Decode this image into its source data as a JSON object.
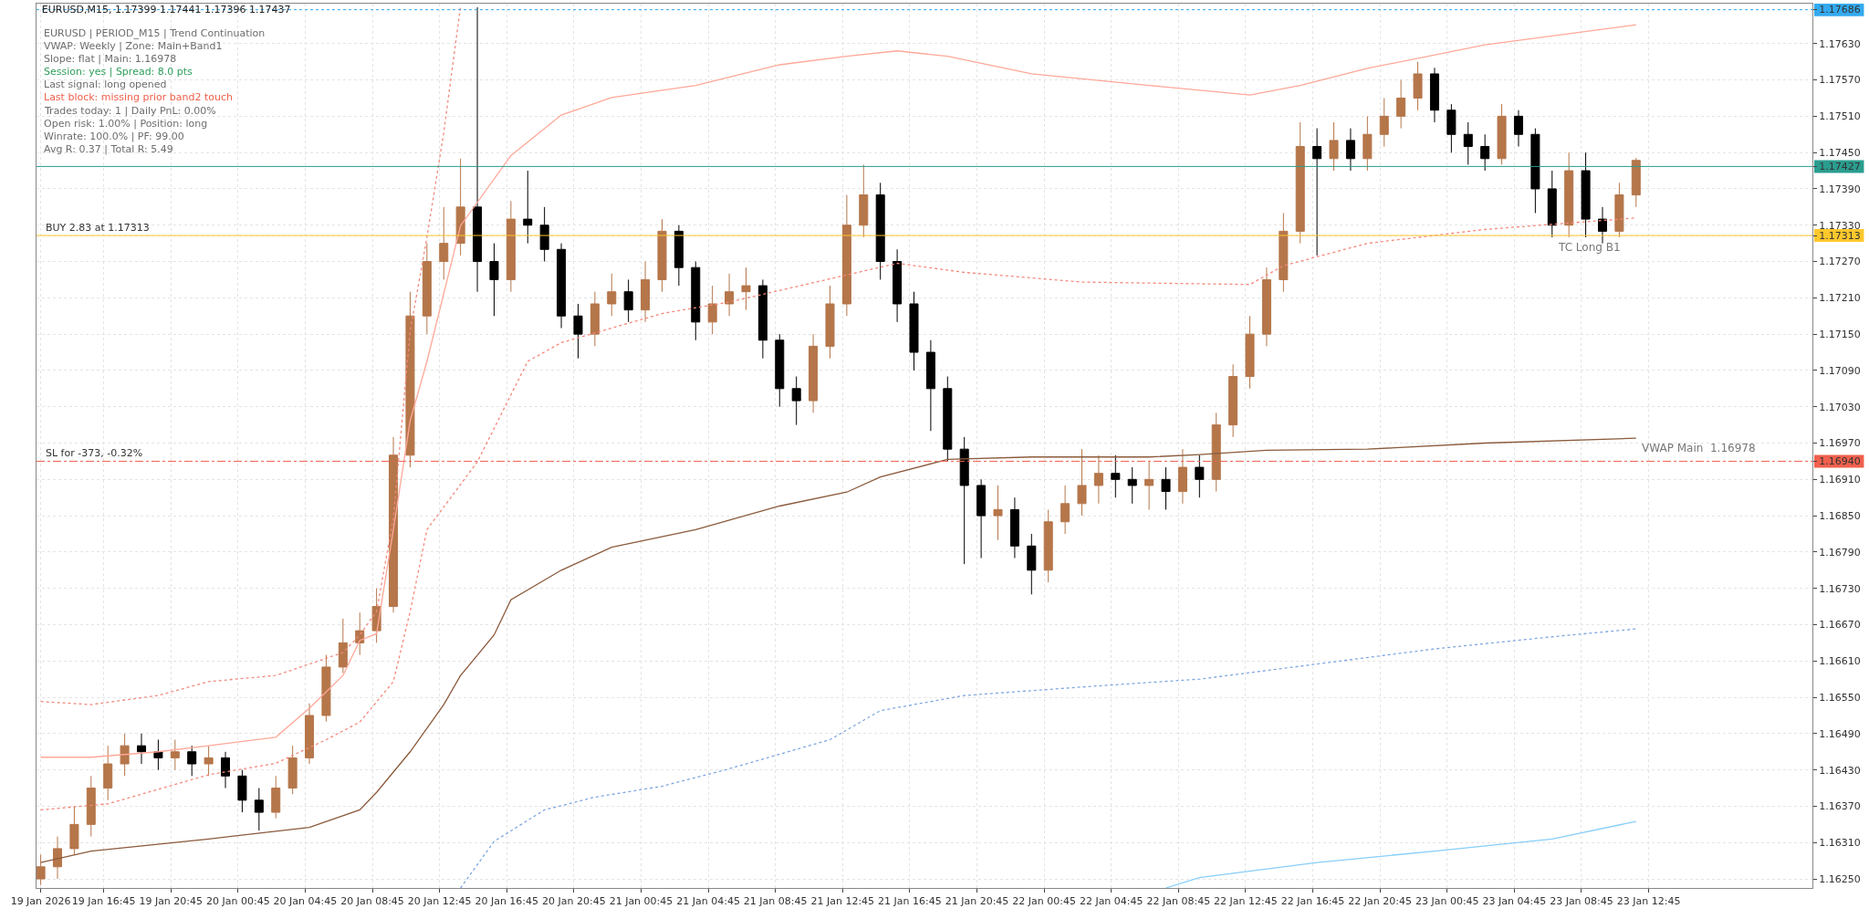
{
  "chart_data": {
    "type": "candlestick",
    "title": "EURUSD,M15, 1.17399 1.17441 1.17396 1.17437",
    "annotations": [
      "EURUSD | PERIOD_M15 | Trend Continuation",
      "VWAP: Weekly | Zone: Main+Band1",
      "Slope: flat | Main: 1.16978",
      "Session: yes | Spread: 8.0 pts",
      "Last signal: long opened",
      "Last block: missing prior band2 touch",
      "Trades today: 1 | Daily PnL: 0.00%",
      "Open risk: 1.00% | Position: long",
      "Winrate: 100.0% | PF: 99.00",
      "Avg R: 0.37 | Total R: 5.49",
      {
        "text": "VWAP Main  1.16978",
        "x": "2026-01-23T12:00",
        "y": 1.16978
      },
      {
        "text": "TC Long B1",
        "x": "2026-01-23T07:00",
        "y": 1.1731
      }
    ],
    "series": [
      {
        "colors": [
          "#b5764a",
          "#b5764a",
          "#b5764a",
          "#b5764a",
          "#b5764a",
          "#b5764a",
          "#000000",
          "#000000",
          "#b5764a",
          "#000000",
          "#b5764a",
          "#000000",
          "#000000",
          "#000000",
          "#b5764a",
          "#b5764a",
          "#b5764a",
          "#b5764a",
          "#b5764a",
          "#b5764a",
          "#b5764a",
          "#b5764a",
          "#b5764a",
          "#b5764a",
          "#b5764a",
          "#b5764a",
          "#000000",
          "#000000",
          "#b5764a",
          "#000000",
          "#000000",
          "#000000",
          "#000000",
          "#b5764a",
          "#b5764a",
          "#000000",
          "#b5764a",
          "#b5764a",
          "#000000",
          "#000000",
          "#b5764a",
          "#b5764a",
          "#b5764a",
          "#000000",
          "#000000",
          "#000000",
          "#b5764a",
          "#b5764a",
          "#b5764a",
          "#b5764a",
          "#000000",
          "#000000",
          "#000000",
          "#000000",
          "#000000",
          "#000000",
          "#000000",
          "#b5764a",
          "#000000",
          "#000000",
          "#b5764a",
          "#b5764a",
          "#b5764a",
          "#b5764a",
          "#000000",
          "#000000",
          "#b5764a",
          "#000000",
          "#b5764a",
          "#000000",
          "#b5764a",
          "#b5764a",
          "#b5764a",
          "#b5764a",
          "#b5764a",
          "#b5764a",
          "#000000",
          "#b5764a",
          "#000000",
          "#b5764a",
          "#b5764a",
          "#b5764a",
          "#b5764a",
          "#000000",
          "#000000",
          "#000000",
          "#000000",
          "#b5764a",
          "#000000",
          "#000000",
          "#000000",
          "#b5764a",
          "#000000",
          "#000000",
          "#b5764a",
          "#b5764a"
        ],
        "x": [
          "2026-01-19T13:00",
          "2026-01-19T14:00",
          "2026-01-19T15:00",
          "2026-01-19T16:00",
          "2026-01-19T17:00",
          "2026-01-19T18:00",
          "2026-01-19T19:00",
          "2026-01-19T20:00",
          "2026-01-19T21:00",
          "2026-01-19T22:00",
          "2026-01-19T23:00",
          "2026-01-20T00:00",
          "2026-01-20T01:00",
          "2026-01-20T02:00",
          "2026-01-20T03:00",
          "2026-01-20T04:00",
          "2026-01-20T05:00",
          "2026-01-20T06:00",
          "2026-01-20T07:00",
          "2026-01-20T08:00",
          "2026-01-20T09:00",
          "2026-01-20T10:00",
          "2026-01-20T11:00",
          "2026-01-20T12:00",
          "2026-01-20T13:00",
          "2026-01-20T14:00",
          "2026-01-20T15:00",
          "2026-01-20T16:00",
          "2026-01-20T17:00",
          "2026-01-20T18:00",
          "2026-01-20T19:00",
          "2026-01-20T20:00",
          "2026-01-20T21:00",
          "2026-01-20T22:00",
          "2026-01-20T23:00",
          "2026-01-21T00:00",
          "2026-01-21T01:00",
          "2026-01-21T02:00",
          "2026-01-21T03:00",
          "2026-01-21T04:00",
          "2026-01-21T05:00",
          "2026-01-21T06:00",
          "2026-01-21T07:00",
          "2026-01-21T08:00",
          "2026-01-21T09:00",
          "2026-01-21T10:00",
          "2026-01-21T11:00",
          "2026-01-21T12:00",
          "2026-01-21T13:00",
          "2026-01-21T14:00",
          "2026-01-21T15:00",
          "2026-01-21T16:00",
          "2026-01-21T17:00",
          "2026-01-21T18:00",
          "2026-01-21T19:00",
          "2026-01-21T20:00",
          "2026-01-21T21:00",
          "2026-01-21T22:00",
          "2026-01-21T23:00",
          "2026-01-22T00:00",
          "2026-01-22T01:00",
          "2026-01-22T02:00",
          "2026-01-22T03:00",
          "2026-01-22T04:00",
          "2026-01-22T05:00",
          "2026-01-22T06:00",
          "2026-01-22T07:00",
          "2026-01-22T08:00",
          "2026-01-22T09:00",
          "2026-01-22T10:00",
          "2026-01-22T11:00",
          "2026-01-22T12:00",
          "2026-01-22T13:00",
          "2026-01-22T14:00",
          "2026-01-22T15:00",
          "2026-01-22T16:00",
          "2026-01-22T17:00",
          "2026-01-22T18:00",
          "2026-01-22T19:00",
          "2026-01-22T20:00",
          "2026-01-22T21:00",
          "2026-01-22T22:00",
          "2026-01-22T23:00",
          "2026-01-23T00:00",
          "2026-01-23T01:00",
          "2026-01-23T02:00",
          "2026-01-23T03:00",
          "2026-01-23T04:00",
          "2026-01-23T05:00",
          "2026-01-23T06:00",
          "2026-01-23T07:00",
          "2026-01-23T08:00",
          "2026-01-23T09:00",
          "2026-01-23T10:00",
          "2026-01-23T11:00",
          "2026-01-23T12:00"
        ],
        "ohlc": [
          [
            1.1625,
            1.1629,
            1.1624,
            1.1627
          ],
          [
            1.1627,
            1.1632,
            1.1625,
            1.163
          ],
          [
            1.163,
            1.1637,
            1.1629,
            1.1634
          ],
          [
            1.1634,
            1.1642,
            1.1632,
            1.164
          ],
          [
            1.164,
            1.1647,
            1.1638,
            1.1644
          ],
          [
            1.1644,
            1.1649,
            1.1642,
            1.1647
          ],
          [
            1.1647,
            1.1649,
            1.1644,
            1.1646
          ],
          [
            1.1646,
            1.1648,
            1.1643,
            1.1645
          ],
          [
            1.1645,
            1.1648,
            1.1643,
            1.1646
          ],
          [
            1.1646,
            1.1647,
            1.1642,
            1.1644
          ],
          [
            1.1644,
            1.1647,
            1.1642,
            1.1645
          ],
          [
            1.1645,
            1.1646,
            1.164,
            1.1642
          ],
          [
            1.1642,
            1.1643,
            1.1636,
            1.1638
          ],
          [
            1.1638,
            1.164,
            1.1633,
            1.1636
          ],
          [
            1.1636,
            1.1642,
            1.1635,
            1.164
          ],
          [
            1.164,
            1.1647,
            1.1639,
            1.1645
          ],
          [
            1.1645,
            1.1654,
            1.1644,
            1.1652
          ],
          [
            1.1652,
            1.1662,
            1.1651,
            1.166
          ],
          [
            1.166,
            1.1668,
            1.1659,
            1.1664
          ],
          [
            1.1664,
            1.1669,
            1.1662,
            1.1666
          ],
          [
            1.1666,
            1.1673,
            1.1664,
            1.167
          ],
          [
            1.167,
            1.1698,
            1.1669,
            1.1695
          ],
          [
            1.1695,
            1.1722,
            1.1693,
            1.1718
          ],
          [
            1.1718,
            1.173,
            1.1715,
            1.1727
          ],
          [
            1.1727,
            1.1736,
            1.1724,
            1.173
          ],
          [
            1.173,
            1.1744,
            1.1728,
            1.1736
          ],
          [
            1.1736,
            1.1769,
            1.1722,
            1.1727
          ],
          [
            1.1727,
            1.173,
            1.1718,
            1.1724
          ],
          [
            1.1724,
            1.1737,
            1.1722,
            1.1734
          ],
          [
            1.1734,
            1.1742,
            1.173,
            1.1733
          ],
          [
            1.1733,
            1.1736,
            1.1727,
            1.1729
          ],
          [
            1.1729,
            1.173,
            1.1716,
            1.1718
          ],
          [
            1.1718,
            1.172,
            1.1711,
            1.1715
          ],
          [
            1.1715,
            1.1722,
            1.1713,
            1.172
          ],
          [
            1.172,
            1.1725,
            1.1718,
            1.1722
          ],
          [
            1.1722,
            1.1724,
            1.1717,
            1.1719
          ],
          [
            1.1719,
            1.1727,
            1.1717,
            1.1724
          ],
          [
            1.1724,
            1.1734,
            1.1722,
            1.1732
          ],
          [
            1.1732,
            1.1733,
            1.1723,
            1.1726
          ],
          [
            1.1726,
            1.1727,
            1.1714,
            1.1717
          ],
          [
            1.1717,
            1.1723,
            1.1715,
            1.172
          ],
          [
            1.172,
            1.1725,
            1.1718,
            1.1722
          ],
          [
            1.1722,
            1.1726,
            1.1719,
            1.1723
          ],
          [
            1.1723,
            1.1724,
            1.1711,
            1.1714
          ],
          [
            1.1714,
            1.1715,
            1.1703,
            1.1706
          ],
          [
            1.1706,
            1.1708,
            1.17,
            1.1704
          ],
          [
            1.1704,
            1.1715,
            1.1702,
            1.1713
          ],
          [
            1.1713,
            1.1723,
            1.1711,
            1.172
          ],
          [
            1.172,
            1.1738,
            1.1718,
            1.1733
          ],
          [
            1.1733,
            1.1743,
            1.1731,
            1.1738
          ],
          [
            1.1738,
            1.174,
            1.1724,
            1.1727
          ],
          [
            1.1727,
            1.1729,
            1.1717,
            1.172
          ],
          [
            1.172,
            1.1722,
            1.1709,
            1.1712
          ],
          [
            1.1712,
            1.1714,
            1.1699,
            1.1706
          ],
          [
            1.1706,
            1.1708,
            1.1694,
            1.1696
          ],
          [
            1.1696,
            1.1698,
            1.1677,
            1.169
          ],
          [
            1.169,
            1.1691,
            1.1678,
            1.1685
          ],
          [
            1.1685,
            1.169,
            1.1681,
            1.1686
          ],
          [
            1.1686,
            1.1688,
            1.1678,
            1.168
          ],
          [
            1.168,
            1.1682,
            1.1672,
            1.1676
          ],
          [
            1.1676,
            1.1686,
            1.1674,
            1.1684
          ],
          [
            1.1684,
            1.169,
            1.1682,
            1.1687
          ],
          [
            1.1687,
            1.1696,
            1.1685,
            1.169
          ],
          [
            1.169,
            1.1695,
            1.1687,
            1.1692
          ],
          [
            1.1692,
            1.1695,
            1.1688,
            1.1691
          ],
          [
            1.1691,
            1.1693,
            1.1687,
            1.169
          ],
          [
            1.169,
            1.1694,
            1.1686,
            1.1691
          ],
          [
            1.1691,
            1.1693,
            1.1686,
            1.1689
          ],
          [
            1.1689,
            1.1696,
            1.1687,
            1.1693
          ],
          [
            1.1693,
            1.1695,
            1.1688,
            1.1691
          ],
          [
            1.1691,
            1.1702,
            1.1689,
            1.17
          ],
          [
            1.17,
            1.171,
            1.1698,
            1.1708
          ],
          [
            1.1708,
            1.1718,
            1.1706,
            1.1715
          ],
          [
            1.1715,
            1.1726,
            1.1713,
            1.1724
          ],
          [
            1.1724,
            1.1735,
            1.1722,
            1.1732
          ],
          [
            1.1732,
            1.175,
            1.173,
            1.1746
          ],
          [
            1.1746,
            1.1749,
            1.1728,
            1.1744
          ],
          [
            1.1744,
            1.175,
            1.1742,
            1.1747
          ],
          [
            1.1747,
            1.1749,
            1.1742,
            1.1744
          ],
          [
            1.1744,
            1.1751,
            1.1742,
            1.1748
          ],
          [
            1.1748,
            1.1754,
            1.1746,
            1.1751
          ],
          [
            1.1751,
            1.1757,
            1.1749,
            1.1754
          ],
          [
            1.1754,
            1.176,
            1.1752,
            1.1758
          ],
          [
            1.1758,
            1.1759,
            1.175,
            1.1752
          ],
          [
            1.1752,
            1.1753,
            1.1745,
            1.1748
          ],
          [
            1.1748,
            1.175,
            1.1743,
            1.1746
          ],
          [
            1.1746,
            1.1748,
            1.1742,
            1.1744
          ],
          [
            1.1744,
            1.1753,
            1.1743,
            1.1751
          ],
          [
            1.1751,
            1.1752,
            1.1746,
            1.1748
          ],
          [
            1.1748,
            1.1749,
            1.1735,
            1.1739
          ],
          [
            1.1739,
            1.1742,
            1.1731,
            1.1733
          ],
          [
            1.1733,
            1.1745,
            1.1731,
            1.1742
          ],
          [
            1.1742,
            1.1745,
            1.1731,
            1.1734
          ],
          [
            1.1734,
            1.1736,
            1.173,
            1.1732
          ],
          [
            1.1732,
            1.174,
            1.1731,
            1.1738
          ],
          [
            1.1738,
            1.17441,
            1.1736,
            1.17437
          ]
        ]
      },
      {
        "type": "line",
        "color": "#f08a7e",
        "line_style": "dotted",
        "x": [
          "2026-01-19T13:00",
          "2026-01-19T16:00",
          "2026-01-19T20:00",
          "2026-01-19T23:00",
          "2026-01-20T03:00",
          "2026-01-20T05:00",
          "2026-01-20T07:00",
          "2026-01-20T08:00",
          "2026-01-20T09:00",
          "2026-01-20T10:00",
          "2026-01-20T11:00",
          "2026-01-20T12:00",
          "2026-01-20T13:00",
          "2026-01-20T14:00"
        ],
        "values": [
          1.16543,
          1.16538,
          1.16553,
          1.16576,
          1.16586,
          1.16605,
          1.16624,
          1.16653,
          1.16692,
          1.16846,
          1.17155,
          1.1731,
          1.17483,
          1.17692
        ]
      },
      {
        "type": "line",
        "color": "#ffa898",
        "line_style": "solid",
        "x": [
          "2026-01-19T13:00",
          "2026-01-19T16:00",
          "2026-01-19T20:00",
          "2026-01-19T23:00",
          "2026-01-20T03:00",
          "2026-01-20T05:00",
          "2026-01-20T07:00",
          "2026-01-20T08:00",
          "2026-01-20T09:00",
          "2026-01-20T10:00",
          "2026-01-20T11:00",
          "2026-01-20T12:00",
          "2026-01-20T14:00",
          "2026-01-20T17:00",
          "2026-01-20T20:00",
          "2026-01-20T23:00",
          "2026-01-21T04:00",
          "2026-01-21T09:00",
          "2026-01-21T13:00",
          "2026-01-21T16:00",
          "2026-01-21T19:00",
          "2026-01-22T00:00",
          "2026-01-22T07:00",
          "2026-01-22T13:00",
          "2026-01-22T16:00",
          "2026-01-22T20:00",
          "2026-01-23T03:00",
          "2026-01-23T12:00"
        ],
        "values": [
          1.16451,
          1.16451,
          1.1646,
          1.1647,
          1.16484,
          1.16532,
          1.16586,
          1.16644,
          1.16655,
          1.16827,
          1.17007,
          1.17105,
          1.17329,
          1.17445,
          1.17512,
          1.17541,
          1.17561,
          1.17595,
          1.17609,
          1.17618,
          1.17609,
          1.1758,
          1.17561,
          1.17545,
          1.17561,
          1.17589,
          1.17628,
          1.17661
        ]
      },
      {
        "type": "line",
        "color": "#f5877a",
        "line_style": "dotted",
        "x": [
          "2026-01-19T13:00",
          "2026-01-19T17:00",
          "2026-01-19T23:00",
          "2026-01-20T03:00",
          "2026-01-20T06:00",
          "2026-01-20T08:00",
          "2026-01-20T10:00",
          "2026-01-20T11:00",
          "2026-01-20T12:00",
          "2026-01-20T15:00",
          "2026-01-20T18:00",
          "2026-01-20T20:00",
          "2026-01-21T02:00",
          "2026-01-21T06:00",
          "2026-01-21T16:00",
          "2026-01-21T20:00",
          "2026-01-22T03:00",
          "2026-01-22T13:00",
          "2026-01-22T15:00",
          "2026-01-22T20:00",
          "2026-01-23T03:00",
          "2026-01-23T12:00"
        ],
        "values": [
          1.16364,
          1.16374,
          1.16422,
          1.16441,
          1.1648,
          1.16509,
          1.16576,
          1.16692,
          1.16827,
          1.16939,
          1.17105,
          1.17136,
          1.17184,
          1.17203,
          1.17267,
          1.17252,
          1.17236,
          1.17232,
          1.17263,
          1.173,
          1.17323,
          1.17342
        ]
      },
      {
        "type": "line",
        "color": "#8b5a3c",
        "line_style": "solid",
        "x": [
          "2026-01-19T13:00",
          "2026-01-19T16:00",
          "2026-01-19T23:00",
          "2026-01-20T05:00",
          "2026-01-20T08:00",
          "2026-01-20T09:00",
          "2026-01-20T11:00",
          "2026-01-20T13:00",
          "2026-01-20T14:00",
          "2026-01-20T16:00",
          "2026-01-20T17:00",
          "2026-01-20T20:00",
          "2026-01-20T23:00",
          "2026-01-21T04:00",
          "2026-01-21T09:00",
          "2026-01-21T13:00",
          "2026-01-21T15:00",
          "2026-01-21T19:00",
          "2026-01-22T00:00",
          "2026-01-22T07:00",
          "2026-01-22T10:00",
          "2026-01-22T14:00",
          "2026-01-22T20:00",
          "2026-01-23T03:00",
          "2026-01-23T12:00"
        ],
        "values": [
          1.16277,
          1.16296,
          1.16316,
          1.16335,
          1.16364,
          1.16393,
          1.1646,
          1.16538,
          1.16586,
          1.16653,
          1.16711,
          1.1676,
          1.16798,
          1.16827,
          1.16866,
          1.16889,
          1.16914,
          1.16943,
          1.16947,
          1.16947,
          1.16951,
          1.16958,
          1.1696,
          1.1697,
          1.16978
        ]
      },
      {
        "type": "line",
        "color": "#7ea6e0",
        "line_style": "dotted",
        "x": [
          "2026-01-20T14:00",
          "2026-01-20T16:00",
          "2026-01-20T19:00",
          "2026-01-20T22:00",
          "2026-01-21T02:00",
          "2026-01-21T06:00",
          "2026-01-21T12:00",
          "2026-01-21T15:00",
          "2026-01-21T20:00",
          "2026-01-22T03:00",
          "2026-01-22T10:00",
          "2026-01-22T17:00",
          "2026-01-23T00:00",
          "2026-01-23T07:00",
          "2026-01-23T12:00"
        ],
        "values": [
          1.16235,
          1.16312,
          1.16364,
          1.16385,
          1.16403,
          1.16432,
          1.1648,
          1.16528,
          1.16553,
          1.16567,
          1.1658,
          1.16605,
          1.1663,
          1.1665,
          1.16663
        ]
      },
      {
        "type": "line",
        "color": "#87cefa",
        "line_style": "solid",
        "x": [
          "2026-01-22T08:00",
          "2026-01-22T10:00",
          "2026-01-22T17:00",
          "2026-01-23T00:00",
          "2026-01-23T07:00",
          "2026-01-23T12:00"
        ],
        "values": [
          1.16235,
          1.16252,
          1.16277,
          1.16296,
          1.16316,
          1.16345
        ]
      }
    ],
    "ref_lines": [
      {
        "axis": "y",
        "value": 1.17686,
        "color": "#33aaf0",
        "line_style": "dotted"
      },
      {
        "axis": "y",
        "value": 1.17427,
        "color": "#2a9d8f",
        "line_style": "solid"
      },
      {
        "axis": "y",
        "value": 1.17313,
        "label": "BUY 2.83 at 1.17313",
        "color": "#ffc82c",
        "line_style": "solid"
      },
      {
        "axis": "y",
        "value": 1.1694,
        "label": "SL for -373, -0.32%",
        "color": "#f0604d",
        "line_style": "dashdot"
      }
    ],
    "xlim": [
      "2026-01-19T12:45",
      "2026-01-23T22:30"
    ],
    "xticks": [
      {
        "value": "2026-01-19T13:00",
        "label": "19 Jan 2026"
      },
      {
        "value": "2026-01-19T16:45",
        "label": "19 Jan 16:45"
      },
      {
        "value": "2026-01-19T20:45",
        "label": "19 Jan 20:45"
      },
      {
        "value": "2026-01-20T00:45",
        "label": "20 Jan 00:45"
      },
      {
        "value": "2026-01-20T04:45",
        "label": "20 Jan 04:45"
      },
      {
        "value": "2026-01-20T08:45",
        "label": "20 Jan 08:45"
      },
      {
        "value": "2026-01-20T12:45",
        "label": "20 Jan 12:45"
      },
      {
        "value": "2026-01-20T16:45",
        "label": "20 Jan 16:45"
      },
      {
        "value": "2026-01-20T20:45",
        "label": "20 Jan 20:45"
      },
      {
        "value": "2026-01-21T00:45",
        "label": "21 Jan 00:45"
      },
      {
        "value": "2026-01-21T04:45",
        "label": "21 Jan 04:45"
      },
      {
        "value": "2026-01-21T08:45",
        "label": "21 Jan 08:45"
      },
      {
        "value": "2026-01-21T12:45",
        "label": "21 Jan 12:45"
      },
      {
        "value": "2026-01-21T16:45",
        "label": "21 Jan 16:45"
      },
      {
        "value": "2026-01-21T20:45",
        "label": "21 Jan 20:45"
      },
      {
        "value": "2026-01-22T00:45",
        "label": "22 Jan 00:45"
      },
      {
        "value": "2026-01-22T04:45",
        "label": "22 Jan 04:45"
      },
      {
        "value": "2026-01-22T08:45",
        "label": "22 Jan 08:45"
      },
      {
        "value": "2026-01-22T12:45",
        "label": "22 Jan 12:45"
      },
      {
        "value": "2026-01-22T16:45",
        "label": "22 Jan 16:45"
      },
      {
        "value": "2026-01-22T20:45",
        "label": "22 Jan 20:45"
      },
      {
        "value": "2026-01-23T00:45",
        "label": "23 Jan 00:45"
      },
      {
        "value": "2026-01-23T04:45",
        "label": "23 Jan 04:45"
      },
      {
        "value": "2026-01-23T08:45",
        "label": "23 Jan 08:45"
      },
      {
        "value": "2026-01-23T12:45",
        "label": "23 Jan 12:45"
      }
    ],
    "ylim": [
      1.16235,
      1.17696
    ],
    "yticks": [
      {
        "value": 1.1625,
        "label": "1.16250"
      },
      {
        "value": 1.1631,
        "label": "1.16310"
      },
      {
        "value": 1.1637,
        "label": "1.16370"
      },
      {
        "value": 1.1643,
        "label": "1.16430"
      },
      {
        "value": 1.1649,
        "label": "1.16490"
      },
      {
        "value": 1.1655,
        "label": "1.16550"
      },
      {
        "value": 1.1661,
        "label": "1.16610"
      },
      {
        "value": 1.1667,
        "label": "1.16670"
      },
      {
        "value": 1.1673,
        "label": "1.16730"
      },
      {
        "value": 1.1679,
        "label": "1.16790"
      },
      {
        "value": 1.1685,
        "label": "1.16850"
      },
      {
        "value": 1.1691,
        "label": "1.16910"
      },
      {
        "value": 1.1697,
        "label": "1.16970"
      },
      {
        "value": 1.1703,
        "label": "1.17030"
      },
      {
        "value": 1.1709,
        "label": "1.17090"
      },
      {
        "value": 1.1715,
        "label": "1.17150"
      },
      {
        "value": 1.1721,
        "label": "1.17210"
      },
      {
        "value": 1.1727,
        "label": "1.17270"
      },
      {
        "value": 1.1733,
        "label": "1.17330"
      },
      {
        "value": 1.1739,
        "label": "1.17390"
      },
      {
        "value": 1.1745,
        "label": "1.17450"
      },
      {
        "value": 1.1751,
        "label": "1.17510"
      },
      {
        "value": 1.1757,
        "label": "1.17570"
      },
      {
        "value": 1.1763,
        "label": "1.17630"
      },
      {
        "value": 1.17686,
        "label": "1.17686"
      },
      {
        "value": 1.17427,
        "label": "1.17427"
      },
      {
        "value": 1.17313,
        "label": "1.17313"
      },
      {
        "value": 1.1694,
        "label": "1.16940"
      }
    ],
    "grid": true
  }
}
